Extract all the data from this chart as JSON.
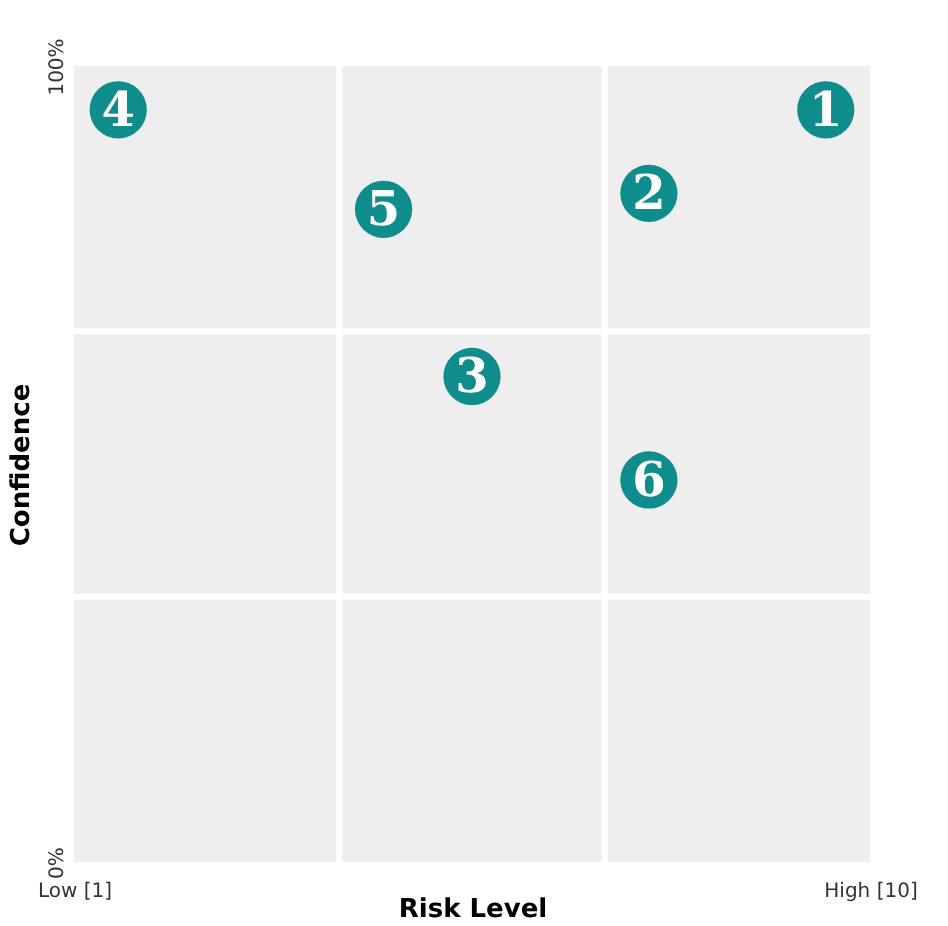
{
  "chart_data": {
    "type": "scatter",
    "xlabel": "Risk Level",
    "ylabel": "Confidence",
    "xlim": [
      1,
      10
    ],
    "ylim": [
      0,
      100
    ],
    "xticks": [
      {
        "value": 1,
        "label": "Low [1]"
      },
      {
        "value": 10,
        "label": "High [10]"
      }
    ],
    "yticks": [
      {
        "value": 0,
        "label": "0%"
      },
      {
        "value": 100,
        "label": "100%"
      }
    ],
    "marker": "circle",
    "ref_lines": [
      {
        "axis": "x",
        "value": 4,
        "color": "#ffffff"
      },
      {
        "axis": "x",
        "value": 7,
        "color": "#ffffff"
      },
      {
        "axis": "y",
        "value": 33.33,
        "color": "#ffffff"
      },
      {
        "axis": "y",
        "value": 66.67,
        "color": "#ffffff"
      }
    ],
    "series": [
      {
        "color": "#0f8c8c",
        "x": [
          9.5,
          7.5,
          5.5,
          1.5,
          4.5,
          7.5
        ],
        "values": [
          94.5,
          84,
          61,
          94.5,
          82,
          48
        ]
      }
    ],
    "annotations": [
      {
        "text": "1",
        "x": 9.5,
        "y": 94.5
      },
      {
        "text": "2",
        "x": 7.5,
        "y": 84
      },
      {
        "text": "3",
        "x": 5.5,
        "y": 61
      },
      {
        "text": "4",
        "x": 1.5,
        "y": 94.5
      },
      {
        "text": "5",
        "x": 4.5,
        "y": 82
      },
      {
        "text": "6",
        "x": 7.5,
        "y": 48
      }
    ]
  }
}
